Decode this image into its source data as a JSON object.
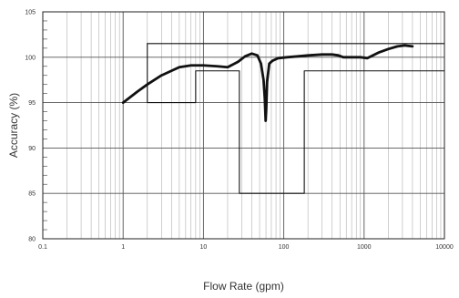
{
  "chart_data": {
    "type": "line",
    "title": "",
    "xlabel": "Flow Rate (gpm)",
    "ylabel": "Accuracy (%)",
    "xscale": "log",
    "xlim": [
      0.1,
      10000
    ],
    "ylim": [
      80,
      105
    ],
    "grid": true,
    "x_tick_labels": [
      "0.1",
      "1",
      "10",
      "100",
      "1000",
      "10000"
    ],
    "x_tick_values": [
      0.1,
      1,
      10,
      100,
      1000,
      10000
    ],
    "y_tick_labels": [
      "80",
      "85",
      "90",
      "95",
      "100",
      "105"
    ],
    "y_tick_values": [
      80,
      85,
      90,
      95,
      100,
      105
    ],
    "series": [
      {
        "style": "thick",
        "x": [
          1,
          1.5,
          2,
          3,
          5,
          7,
          10,
          15,
          20,
          27,
          33,
          40,
          47,
          52,
          56,
          58,
          59.5,
          60.5,
          62,
          66,
          72,
          85,
          110,
          150,
          200,
          300,
          400,
          480,
          550,
          700,
          900,
          1100,
          1500,
          2000,
          2600,
          3200,
          4000
        ],
        "y": [
          95.0,
          96.2,
          97.0,
          98.0,
          98.9,
          99.1,
          99.1,
          99.0,
          98.9,
          99.5,
          100.1,
          100.4,
          100.2,
          99.3,
          97.5,
          95.5,
          93.0,
          94.3,
          97.3,
          99.3,
          99.6,
          99.9,
          100.0,
          100.1,
          100.2,
          100.3,
          100.3,
          100.2,
          100.0,
          100.0,
          100.0,
          99.9,
          100.5,
          100.9,
          101.2,
          101.3,
          101.2
        ]
      },
      {
        "style": "thin",
        "x": [
          2,
          10000
        ],
        "y": [
          101.5,
          101.5
        ]
      },
      {
        "style": "thin",
        "x": [
          2,
          2,
          8,
          8,
          28,
          28,
          180,
          180,
          10000
        ],
        "y": [
          101.5,
          95.0,
          95.0,
          98.5,
          98.5,
          85.0,
          85.0,
          98.5,
          98.5
        ]
      }
    ]
  }
}
